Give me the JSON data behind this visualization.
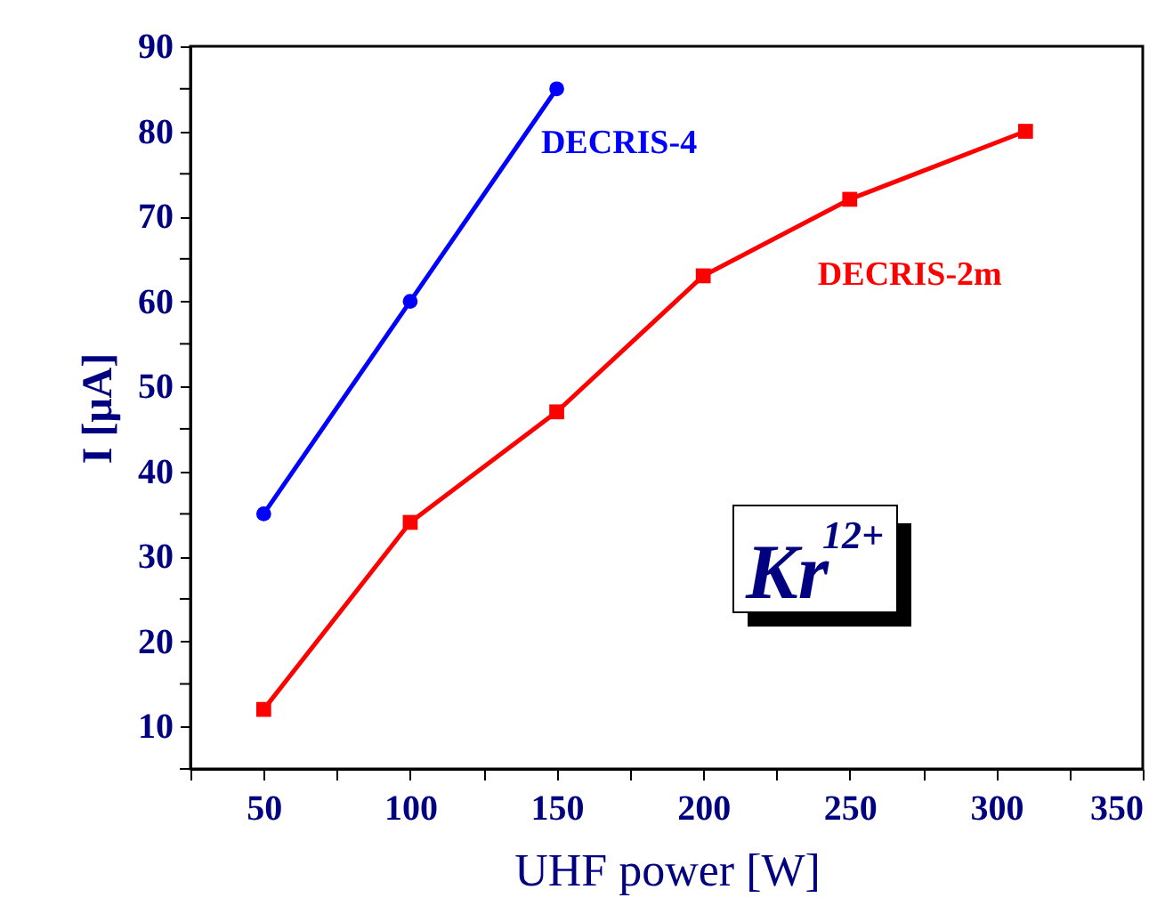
{
  "chart_data": {
    "type": "line",
    "xlabel": "UHF power [W]",
    "ylabel": "I [μA]",
    "xlim": [
      25,
      350
    ],
    "ylim": [
      5,
      90
    ],
    "xticks": [
      {
        "value": 25,
        "label": null
      },
      50,
      {
        "value": 75,
        "label": null
      },
      100,
      {
        "value": 125,
        "label": null
      },
      150,
      {
        "value": 175,
        "label": null
      },
      200,
      {
        "value": 225,
        "label": null
      },
      250,
      {
        "value": 275,
        "label": null
      },
      300,
      {
        "value": 325,
        "label": null
      },
      350
    ],
    "yticks": [
      {
        "value": 5,
        "label": null
      },
      10,
      {
        "value": 15,
        "label": null
      },
      20,
      {
        "value": 25,
        "label": null
      },
      30,
      {
        "value": 35,
        "label": null
      },
      40,
      {
        "value": 45,
        "label": null
      },
      50,
      {
        "value": 55,
        "label": null
      },
      60,
      {
        "value": 65,
        "label": null
      },
      70,
      {
        "value": 75,
        "label": null
      },
      80,
      {
        "value": 85,
        "label": null
      },
      90
    ],
    "series": [
      {
        "name": "DECRIS-4",
        "color": "#0000ff",
        "marker": "circle",
        "x": [
          50,
          100,
          150
        ],
        "values": [
          35,
          60,
          85
        ]
      },
      {
        "name": "DECRIS-2m",
        "color": "#ff0000",
        "marker": "square",
        "x": [
          50,
          100,
          150,
          200,
          250,
          310
        ],
        "values": [
          12,
          34,
          47,
          63,
          72,
          80
        ]
      }
    ],
    "annotations": [
      "Kr$^{12+}$"
    ],
    "line_style": "solid",
    "grid": false,
    "legend": false
  }
}
